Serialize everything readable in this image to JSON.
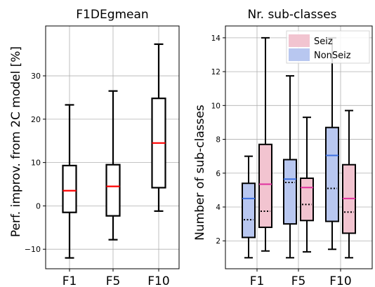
{
  "chart_data": [
    {
      "type": "box",
      "title": "F1DEgmean",
      "ylabel": "Perf. improv. from 2C model [%]",
      "xlabel": "",
      "categories": [
        "F1",
        "F5",
        "F10"
      ],
      "ylim": [
        -14.5,
        41.5
      ],
      "yticks": [
        -10,
        0,
        10,
        20,
        30
      ],
      "grid": true,
      "boxes": [
        {
          "category": "F1",
          "min": -12.0,
          "q1": -1.5,
          "median": 3.5,
          "q3": 9.3,
          "max": 23.3
        },
        {
          "category": "F5",
          "min": -7.8,
          "q1": -2.3,
          "median": 4.5,
          "q3": 9.5,
          "max": 26.5
        },
        {
          "category": "F10",
          "min": -1.2,
          "q1": 4.2,
          "median": 14.5,
          "q3": 24.8,
          "max": 37.3
        }
      ],
      "colors": {
        "box": "#ffffff",
        "median": "#ff0000",
        "edge": "#000000"
      }
    },
    {
      "type": "box",
      "title": "Nr. sub-classes",
      "ylabel": "Number of sub-classes",
      "xlabel": "",
      "categories": [
        "F1",
        "F5",
        "F10"
      ],
      "ylim": [
        0.35,
        14.7
      ],
      "yticks": [
        2,
        4,
        6,
        8,
        10,
        12,
        14
      ],
      "grid": true,
      "legend": "top-right",
      "series": [
        {
          "name": "NonSeiz",
          "color": "#b8c7f0",
          "median_color": "#3b6fe0",
          "boxes": [
            {
              "category": "F1",
              "min": 1.0,
              "q1": 2.2,
              "median": 4.5,
              "mean": 3.25,
              "q3": 5.4,
              "max": 7.0
            },
            {
              "category": "F5",
              "min": 1.0,
              "q1": 3.0,
              "median": 5.65,
              "mean": 5.45,
              "q3": 6.8,
              "max": 11.75
            },
            {
              "category": "F10",
              "min": 1.5,
              "q1": 3.15,
              "median": 7.05,
              "mean": 5.1,
              "q3": 8.7,
              "max": 14.0
            }
          ]
        },
        {
          "name": "Seiz",
          "color": "#f2c4d0",
          "median_color": "#e0309e",
          "boxes": [
            {
              "category": "F1",
              "min": 1.4,
              "q1": 2.8,
              "median": 5.35,
              "mean": 3.75,
              "q3": 7.7,
              "max": 14.0
            },
            {
              "category": "F5",
              "min": 1.35,
              "q1": 3.2,
              "median": 5.15,
              "mean": 4.15,
              "q3": 5.7,
              "max": 9.3
            },
            {
              "category": "F10",
              "min": 1.0,
              "q1": 2.45,
              "median": 4.5,
              "mean": 3.7,
              "q3": 6.5,
              "max": 9.7
            }
          ]
        }
      ]
    }
  ]
}
